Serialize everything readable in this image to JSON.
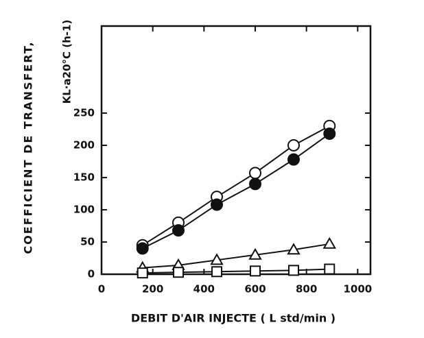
{
  "chart_data": {
    "type": "line",
    "xlabel": "DEBIT D'AIR INJECTE ( L std/min )",
    "ylabel": "COEFFICIENT DE TRANSFERT,",
    "ylabel2": "KL·a20°C (h-1)",
    "xlim": [
      0,
      1050
    ],
    "ylim": [
      0,
      385
    ],
    "xticks": [
      0,
      200,
      400,
      600,
      800,
      1000
    ],
    "yticks": [
      0,
      50,
      100,
      150,
      200,
      250
    ],
    "series": [
      {
        "marker": "circle",
        "filled": false,
        "color": "#111",
        "x": [
          160,
          300,
          450,
          600,
          750,
          890
        ],
        "values": [
          45,
          80,
          120,
          157,
          200,
          230
        ]
      },
      {
        "marker": "circle",
        "filled": true,
        "color": "#111",
        "x": [
          160,
          300,
          450,
          600,
          750,
          890
        ],
        "values": [
          40,
          68,
          108,
          140,
          178,
          218
        ]
      },
      {
        "marker": "triangle",
        "filled": false,
        "color": "#111",
        "x": [
          160,
          300,
          450,
          600,
          750,
          890
        ],
        "values": [
          10,
          14,
          22,
          30,
          38,
          47
        ]
      },
      {
        "marker": "square",
        "filled": false,
        "color": "#111",
        "x": [
          160,
          300,
          450,
          600,
          750,
          890
        ],
        "values": [
          2,
          3,
          4,
          5,
          6,
          8
        ]
      }
    ]
  }
}
